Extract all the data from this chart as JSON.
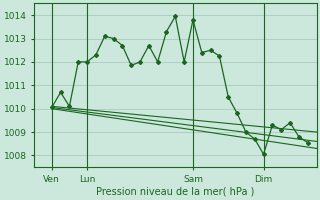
{
  "bg_color": "#cce8dc",
  "grid_color": "#aaccbc",
  "line_color": "#1a6620",
  "xlabel": "Pression niveau de la mer( hPa )",
  "ylim": [
    1007.5,
    1014.5
  ],
  "yticks": [
    1008,
    1009,
    1010,
    1011,
    1012,
    1013,
    1014
  ],
  "xtick_labels": [
    "Ven",
    "Lun",
    "Sam",
    "Dim"
  ],
  "xtick_positions": [
    1,
    3,
    9,
    13
  ],
  "vlines": [
    1,
    3,
    9,
    13
  ],
  "xlim": [
    0,
    16
  ],
  "series_main": {
    "x": [
      1,
      1.5,
      2,
      2.5,
      3,
      3.5,
      4,
      4.5,
      5,
      5.5,
      6,
      6.5,
      7,
      7.5,
      8,
      8.5,
      9,
      9.5,
      10,
      10.5,
      11,
      11.5,
      12,
      12.5,
      13,
      13.5,
      14,
      14.5,
      15,
      15.5
    ],
    "y": [
      1010.05,
      1010.7,
      1010.1,
      1012.0,
      1012.0,
      1012.3,
      1013.1,
      1013.0,
      1012.7,
      1011.85,
      1012.0,
      1012.7,
      1012.0,
      1013.3,
      1013.95,
      1012.0,
      1013.8,
      1012.4,
      1012.5,
      1012.25,
      1010.5,
      1009.8,
      1009.0,
      1008.7,
      1008.05,
      1009.3,
      1009.1,
      1009.4,
      1008.8,
      1008.55
    ]
  },
  "series_flat": [
    {
      "x": [
        1,
        16
      ],
      "y": [
        1010.0,
        1008.3
      ]
    },
    {
      "x": [
        1,
        16
      ],
      "y": [
        1010.05,
        1008.6
      ]
    },
    {
      "x": [
        1,
        16
      ],
      "y": [
        1010.1,
        1009.0
      ]
    }
  ]
}
